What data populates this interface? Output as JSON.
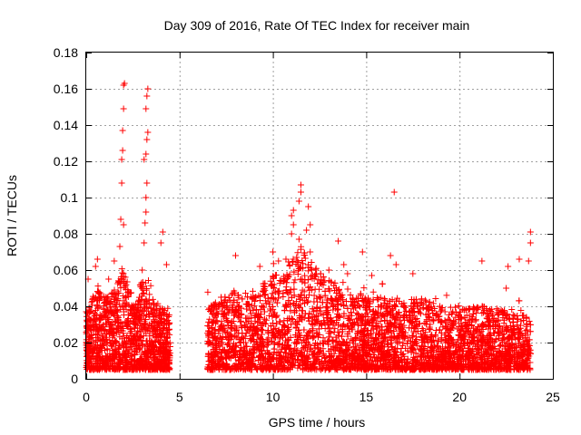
{
  "chart_data": {
    "type": "scatter",
    "title": "Day 309 of 2016, Rate Of TEC Index for receiver main",
    "xlabel": "GPS time / hours",
    "ylabel": "ROTI / TECUs",
    "xlim": [
      0,
      25
    ],
    "ylim": [
      0,
      0.18
    ],
    "x_ticks": [
      "0",
      "5",
      "10",
      "15",
      "20",
      "25"
    ],
    "y_ticks": [
      "0",
      "0.02",
      "0.04",
      "0.06",
      "0.08",
      "0.1",
      "0.12",
      "0.14",
      "0.16",
      "0.18"
    ],
    "grid": true,
    "marker": "+",
    "marker_color": "#ff0000",
    "series": [
      {
        "name": "ROTI",
        "observation_segments": [
          [
            0.0,
            4.5
          ],
          [
            6.5,
            23.8
          ]
        ],
        "baseline_range": [
          0.005,
          0.045
        ],
        "envelope": [
          {
            "x": 0.0,
            "y": 0.035
          },
          {
            "x": 0.5,
            "y": 0.05
          },
          {
            "x": 1.0,
            "y": 0.045
          },
          {
            "x": 1.5,
            "y": 0.05
          },
          {
            "x": 2.0,
            "y": 0.06
          },
          {
            "x": 2.5,
            "y": 0.045
          },
          {
            "x": 3.0,
            "y": 0.055
          },
          {
            "x": 3.5,
            "y": 0.045
          },
          {
            "x": 4.0,
            "y": 0.04
          },
          {
            "x": 4.5,
            "y": 0.035
          },
          {
            "x": 6.5,
            "y": 0.04
          },
          {
            "x": 7.5,
            "y": 0.045
          },
          {
            "x": 8.0,
            "y": 0.05
          },
          {
            "x": 9.0,
            "y": 0.045
          },
          {
            "x": 10.0,
            "y": 0.06
          },
          {
            "x": 10.5,
            "y": 0.055
          },
          {
            "x": 11.0,
            "y": 0.07
          },
          {
            "x": 11.5,
            "y": 0.075
          },
          {
            "x": 12.0,
            "y": 0.065
          },
          {
            "x": 12.5,
            "y": 0.06
          },
          {
            "x": 13.0,
            "y": 0.055
          },
          {
            "x": 13.5,
            "y": 0.05
          },
          {
            "x": 14.0,
            "y": 0.045
          },
          {
            "x": 15.0,
            "y": 0.045
          },
          {
            "x": 16.0,
            "y": 0.045
          },
          {
            "x": 17.0,
            "y": 0.045
          },
          {
            "x": 18.0,
            "y": 0.045
          },
          {
            "x": 19.0,
            "y": 0.04
          },
          {
            "x": 20.0,
            "y": 0.04
          },
          {
            "x": 21.0,
            "y": 0.04
          },
          {
            "x": 22.0,
            "y": 0.04
          },
          {
            "x": 23.0,
            "y": 0.035
          },
          {
            "x": 23.8,
            "y": 0.035
          }
        ],
        "spikes": [
          {
            "x": 0.0,
            "y": 0.037
          },
          {
            "x": 0.1,
            "y": 0.055
          },
          {
            "x": 0.5,
            "y": 0.062
          },
          {
            "x": 0.6,
            "y": 0.066
          },
          {
            "x": 1.2,
            "y": 0.055
          },
          {
            "x": 1.5,
            "y": 0.065
          },
          {
            "x": 1.8,
            "y": 0.073
          },
          {
            "x": 1.85,
            "y": 0.088
          },
          {
            "x": 1.9,
            "y": 0.108
          },
          {
            "x": 1.9,
            "y": 0.121
          },
          {
            "x": 1.95,
            "y": 0.126
          },
          {
            "x": 1.95,
            "y": 0.137
          },
          {
            "x": 2.0,
            "y": 0.149
          },
          {
            "x": 2.0,
            "y": 0.162
          },
          {
            "x": 2.05,
            "y": 0.163
          },
          {
            "x": 2.0,
            "y": 0.085
          },
          {
            "x": 3.1,
            "y": 0.075
          },
          {
            "x": 3.15,
            "y": 0.086
          },
          {
            "x": 3.2,
            "y": 0.092
          },
          {
            "x": 3.2,
            "y": 0.1
          },
          {
            "x": 3.25,
            "y": 0.108
          },
          {
            "x": 3.1,
            "y": 0.121
          },
          {
            "x": 3.2,
            "y": 0.124
          },
          {
            "x": 3.25,
            "y": 0.132
          },
          {
            "x": 3.3,
            "y": 0.136
          },
          {
            "x": 3.2,
            "y": 0.149
          },
          {
            "x": 3.25,
            "y": 0.156
          },
          {
            "x": 3.3,
            "y": 0.16
          },
          {
            "x": 3.0,
            "y": 0.06
          },
          {
            "x": 4.0,
            "y": 0.075
          },
          {
            "x": 4.1,
            "y": 0.081
          },
          {
            "x": 4.3,
            "y": 0.063
          },
          {
            "x": 8.0,
            "y": 0.068
          },
          {
            "x": 9.3,
            "y": 0.062
          },
          {
            "x": 10.0,
            "y": 0.07
          },
          {
            "x": 10.3,
            "y": 0.065
          },
          {
            "x": 10.7,
            "y": 0.066
          },
          {
            "x": 11.0,
            "y": 0.08
          },
          {
            "x": 11.1,
            "y": 0.085
          },
          {
            "x": 11.0,
            "y": 0.09
          },
          {
            "x": 11.1,
            "y": 0.093
          },
          {
            "x": 11.4,
            "y": 0.098
          },
          {
            "x": 11.5,
            "y": 0.103
          },
          {
            "x": 11.5,
            "y": 0.107
          },
          {
            "x": 11.4,
            "y": 0.077
          },
          {
            "x": 11.8,
            "y": 0.082
          },
          {
            "x": 12.0,
            "y": 0.085
          },
          {
            "x": 11.9,
            "y": 0.095
          },
          {
            "x": 12.0,
            "y": 0.07
          },
          {
            "x": 13.0,
            "y": 0.06
          },
          {
            "x": 13.5,
            "y": 0.076
          },
          {
            "x": 13.8,
            "y": 0.063
          },
          {
            "x": 14.0,
            "y": 0.058
          },
          {
            "x": 14.8,
            "y": 0.07
          },
          {
            "x": 15.3,
            "y": 0.057
          },
          {
            "x": 16.5,
            "y": 0.103
          },
          {
            "x": 16.3,
            "y": 0.068
          },
          {
            "x": 16.6,
            "y": 0.063
          },
          {
            "x": 17.5,
            "y": 0.058
          },
          {
            "x": 21.2,
            "y": 0.065
          },
          {
            "x": 22.5,
            "y": 0.05
          },
          {
            "x": 22.6,
            "y": 0.062
          },
          {
            "x": 23.2,
            "y": 0.066
          },
          {
            "x": 23.8,
            "y": 0.081
          },
          {
            "x": 23.8,
            "y": 0.075
          },
          {
            "x": 23.7,
            "y": 0.065
          }
        ]
      }
    ]
  }
}
